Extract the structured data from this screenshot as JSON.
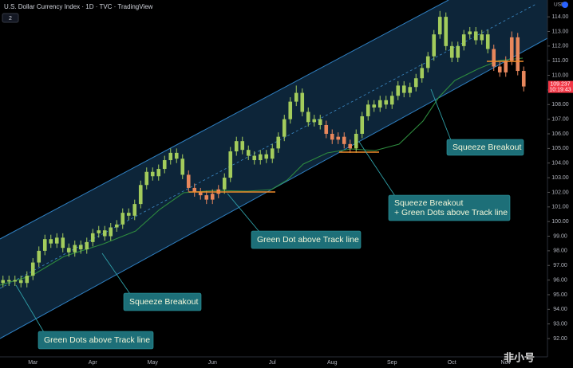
{
  "chart_data": {
    "type": "candlestick",
    "title": "U.S. Dollar Currency Index · 1D · TVC · TradingView",
    "indicator_count": "2",
    "currency": "USD",
    "last_price": 109.237,
    "countdown": "10:19:43",
    "watermark": "非小号",
    "categories": [
      null,
      null,
      null,
      null,
      null,
      "Mar",
      null,
      null,
      null,
      null,
      null,
      null,
      null,
      null,
      null,
      "Apr",
      null,
      null,
      null,
      null,
      null,
      null,
      null,
      null,
      null,
      "May",
      null,
      null,
      null,
      null,
      null,
      null,
      null,
      null,
      null,
      "Jun",
      null,
      null,
      null,
      null,
      null,
      null,
      null,
      null,
      null,
      "Jul",
      null,
      null,
      null,
      null,
      null,
      null,
      null,
      null,
      null,
      "Aug",
      null,
      null,
      null,
      null,
      null,
      null,
      null,
      null,
      null,
      "Sep",
      null,
      null,
      null,
      null,
      null,
      null,
      null,
      null,
      null,
      "Oct",
      null,
      null,
      null,
      null,
      null,
      null,
      null,
      null,
      "Nov",
      null,
      null,
      null
    ],
    "open": [
      95.8,
      96.0,
      95.9,
      96.0,
      95.8,
      96.3,
      97.2,
      98.0,
      98.8,
      98.5,
      98.9,
      98.2,
      97.9,
      98.4,
      98.1,
      98.6,
      99.2,
      99.4,
      99.0,
      99.6,
      99.8,
      100.6,
      100.4,
      101.2,
      102.5,
      103.4,
      103.1,
      103.6,
      104.2,
      104.7,
      104.3,
      103.2,
      102.3,
      102.0,
      101.8,
      101.5,
      101.9,
      102.2,
      103.0,
      104.8,
      105.5,
      104.9,
      104.5,
      104.2,
      104.6,
      104.3,
      105.0,
      105.8,
      107.0,
      108.2,
      108.8,
      107.5,
      106.8,
      107.0,
      106.6,
      106.0,
      105.6,
      105.8,
      105.3,
      105.0,
      106.0,
      107.2,
      108.0,
      107.8,
      108.3,
      108.0,
      108.6,
      109.3,
      108.8,
      109.2,
      109.8,
      110.5,
      111.3,
      112.8,
      114.0,
      112.0,
      111.2,
      112.0,
      112.8,
      113.0,
      112.4,
      112.8,
      111.8,
      110.6,
      110.2,
      111.0,
      112.6,
      110.3
    ],
    "high": [
      96.3,
      96.3,
      96.3,
      96.3,
      96.6,
      97.5,
      98.3,
      99.1,
      99.1,
      99.2,
      99.2,
      98.5,
      98.7,
      98.7,
      98.9,
      99.5,
      99.7,
      99.7,
      99.9,
      100.1,
      100.9,
      100.9,
      101.5,
      102.8,
      103.7,
      103.7,
      103.9,
      104.5,
      105.0,
      105.0,
      104.6,
      103.5,
      102.6,
      102.3,
      102.1,
      102.2,
      102.5,
      103.3,
      105.1,
      105.8,
      105.8,
      105.2,
      104.8,
      104.9,
      104.9,
      105.3,
      106.1,
      107.3,
      108.5,
      109.3,
      109.1,
      107.8,
      107.3,
      107.3,
      106.9,
      106.3,
      106.1,
      106.1,
      105.6,
      106.3,
      107.5,
      108.3,
      108.3,
      108.6,
      108.6,
      108.9,
      109.6,
      109.6,
      109.5,
      110.1,
      110.8,
      111.6,
      113.1,
      114.4,
      114.3,
      112.3,
      112.3,
      113.1,
      113.3,
      113.3,
      113.1,
      113.1,
      112.1,
      110.9,
      111.3,
      113.0,
      112.9,
      110.6
    ],
    "low": [
      95.5,
      95.6,
      95.6,
      95.5,
      95.5,
      96.0,
      96.9,
      97.7,
      98.2,
      98.2,
      97.9,
      97.6,
      97.6,
      97.8,
      97.8,
      98.3,
      98.9,
      98.7,
      98.7,
      99.3,
      99.5,
      100.1,
      100.1,
      100.9,
      102.2,
      102.8,
      102.8,
      103.3,
      103.9,
      104.0,
      102.9,
      102.0,
      101.7,
      101.5,
      101.2,
      101.2,
      101.6,
      101.9,
      102.7,
      104.5,
      104.6,
      104.2,
      103.9,
      103.9,
      104.0,
      104.0,
      104.7,
      105.5,
      106.7,
      107.9,
      107.2,
      106.5,
      106.5,
      106.3,
      105.7,
      105.3,
      105.3,
      105.0,
      104.7,
      104.7,
      105.7,
      106.9,
      107.5,
      107.5,
      107.7,
      107.7,
      108.3,
      108.5,
      108.5,
      108.9,
      109.5,
      110.2,
      111.0,
      112.5,
      111.7,
      110.9,
      110.9,
      111.7,
      112.5,
      112.1,
      112.1,
      111.5,
      110.3,
      109.9,
      109.9,
      110.7,
      110.0,
      108.9
    ],
    "close": [
      96.0,
      95.9,
      96.0,
      95.8,
      96.3,
      97.2,
      98.0,
      98.8,
      98.5,
      98.9,
      98.2,
      97.9,
      98.4,
      98.1,
      98.6,
      99.2,
      99.4,
      99.0,
      99.6,
      99.8,
      100.6,
      100.4,
      101.2,
      102.5,
      103.4,
      103.1,
      103.6,
      104.2,
      104.7,
      104.3,
      103.2,
      102.3,
      102.0,
      101.8,
      101.5,
      101.9,
      102.2,
      103.0,
      104.8,
      105.5,
      104.9,
      104.5,
      104.2,
      104.6,
      104.3,
      105.0,
      105.8,
      107.0,
      108.2,
      108.8,
      107.5,
      106.8,
      107.0,
      106.6,
      106.0,
      105.6,
      105.8,
      105.3,
      105.0,
      106.0,
      107.2,
      108.0,
      107.8,
      108.3,
      108.0,
      108.6,
      109.3,
      108.8,
      109.2,
      109.8,
      110.5,
      111.3,
      112.8,
      114.0,
      112.0,
      111.2,
      112.0,
      112.8,
      113.0,
      112.4,
      112.8,
      111.8,
      110.6,
      110.2,
      111.0,
      112.6,
      110.3,
      109.237
    ],
    "colors": [
      "#a3cc5c",
      "#a3cc5c",
      "#a3cc5c",
      "#a3cc5c",
      "#a3cc5c",
      "#a3cc5c",
      "#a3cc5c",
      "#a3cc5c",
      "#a3cc5c",
      "#a3cc5c",
      "#a3cc5c",
      "#a3cc5c",
      "#a3cc5c",
      "#a3cc5c",
      "#a3cc5c",
      "#a3cc5c",
      "#a3cc5c",
      "#a3cc5c",
      "#a3cc5c",
      "#a3cc5c",
      "#a3cc5c",
      "#a3cc5c",
      "#a3cc5c",
      "#a3cc5c",
      "#a3cc5c",
      "#a3cc5c",
      "#a3cc5c",
      "#a3cc5c",
      "#a3cc5c",
      "#a3cc5c",
      "#a3cc5c",
      "#e8875c",
      "#e8875c",
      "#e8875c",
      "#e8875c",
      "#e8875c",
      "#e8875c",
      "#a3cc5c",
      "#a3cc5c",
      "#a3cc5c",
      "#a3cc5c",
      "#a3cc5c",
      "#a3cc5c",
      "#a3cc5c",
      "#a3cc5c",
      "#a3cc5c",
      "#a3cc5c",
      "#a3cc5c",
      "#a3cc5c",
      "#a3cc5c",
      "#a3cc5c",
      "#a3cc5c",
      "#a3cc5c",
      "#a3cc5c",
      "#e8875c",
      "#e8875c",
      "#e8875c",
      "#e8875c",
      "#e8875c",
      "#a3cc5c",
      "#a3cc5c",
      "#a3cc5c",
      "#a3cc5c",
      "#a3cc5c",
      "#a3cc5c",
      "#a3cc5c",
      "#a3cc5c",
      "#a3cc5c",
      "#a3cc5c",
      "#a3cc5c",
      "#a3cc5c",
      "#a3cc5c",
      "#a3cc5c",
      "#a3cc5c",
      "#a3cc5c",
      "#a3cc5c",
      "#a3cc5c",
      "#a3cc5c",
      "#a3cc5c",
      "#a3cc5c",
      "#a3cc5c",
      "#a3cc5c",
      "#e8875c",
      "#e8875c",
      "#e8875c",
      "#e8875c",
      "#e8875c",
      "#e8875c"
    ],
    "ylim": [
      90.75,
      115.15
    ],
    "yticks": [
      {
        "value": 92,
        "label": "92.00"
      },
      {
        "value": 93,
        "label": "93.00"
      },
      {
        "value": 94,
        "label": "94.00"
      },
      {
        "value": 95,
        "label": "95.00"
      },
      {
        "value": 96,
        "label": "96.00"
      },
      {
        "value": 97,
        "label": "97.00"
      },
      {
        "value": 98,
        "label": "98.00"
      },
      {
        "value": 99,
        "label": "99.00"
      },
      {
        "value": 100,
        "label": "100.00"
      },
      {
        "value": 101,
        "label": "101.00"
      },
      {
        "value": 102,
        "label": "102.00"
      },
      {
        "value": 103,
        "label": "103.00"
      },
      {
        "value": 104,
        "label": "104.00"
      },
      {
        "value": 105,
        "label": "105.00"
      },
      {
        "value": 106,
        "label": "106.00"
      },
      {
        "value": 107,
        "label": "107.00"
      },
      {
        "value": 108,
        "label": "108.00"
      },
      {
        "value": 109,
        "label": "109.00"
      },
      {
        "value": 110,
        "label": "110.00"
      },
      {
        "value": 111,
        "label": "111.00"
      },
      {
        "value": 112,
        "label": "112.00"
      },
      {
        "value": 113,
        "label": "113.00"
      },
      {
        "value": 114,
        "label": "114.00"
      }
    ],
    "annotations": [
      {
        "lines": [
          "Squeeze Breakout"
        ]
      },
      {
        "lines": [
          "Squeeze Breakout",
          "+ Green Dots above Track line"
        ]
      },
      {
        "lines": [
          "Green Dot above Track line"
        ]
      },
      {
        "lines": [
          "Squeeze Breakout"
        ]
      },
      {
        "lines": [
          "Green Dots above Track line"
        ]
      }
    ]
  }
}
